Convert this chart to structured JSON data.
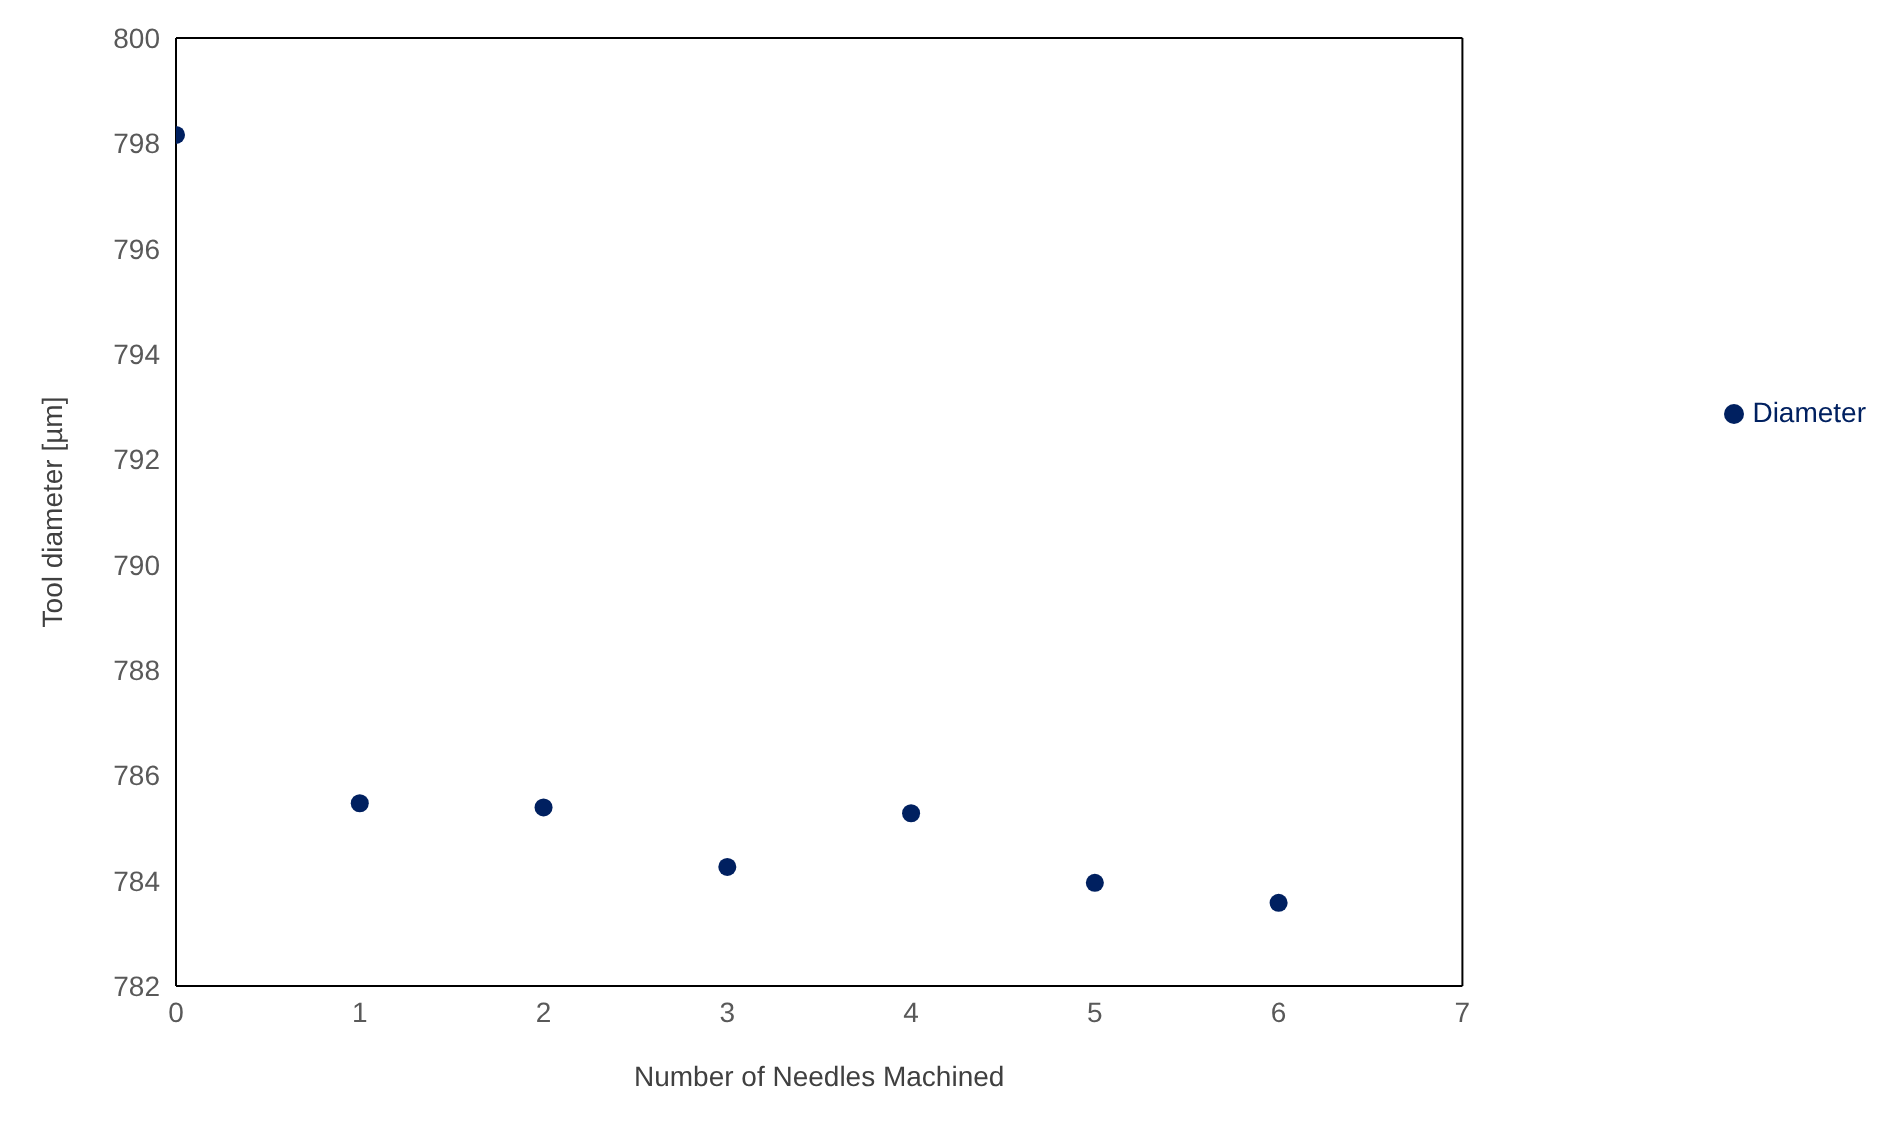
{
  "chart_data": {
    "type": "scatter",
    "xlabel": "Number of Needles Machined",
    "ylabel": "Tool diameter [µm]",
    "x": [
      0,
      1,
      2,
      3,
      4,
      5,
      6
    ],
    "series": [
      {
        "name": "Diameter",
        "color": "#002060",
        "values": [
          798.16,
          785.47,
          785.39,
          784.26,
          785.28,
          783.96,
          783.58
        ]
      }
    ],
    "xlim": [
      0,
      7
    ],
    "xticks": [
      0,
      1,
      2,
      3,
      4,
      5,
      6,
      7
    ],
    "ylim": [
      782,
      800
    ],
    "yticks": [
      782,
      784,
      786,
      788,
      790,
      792,
      794,
      796,
      798,
      800
    ],
    "grid": false,
    "legend": "right",
    "marker": "circle"
  }
}
